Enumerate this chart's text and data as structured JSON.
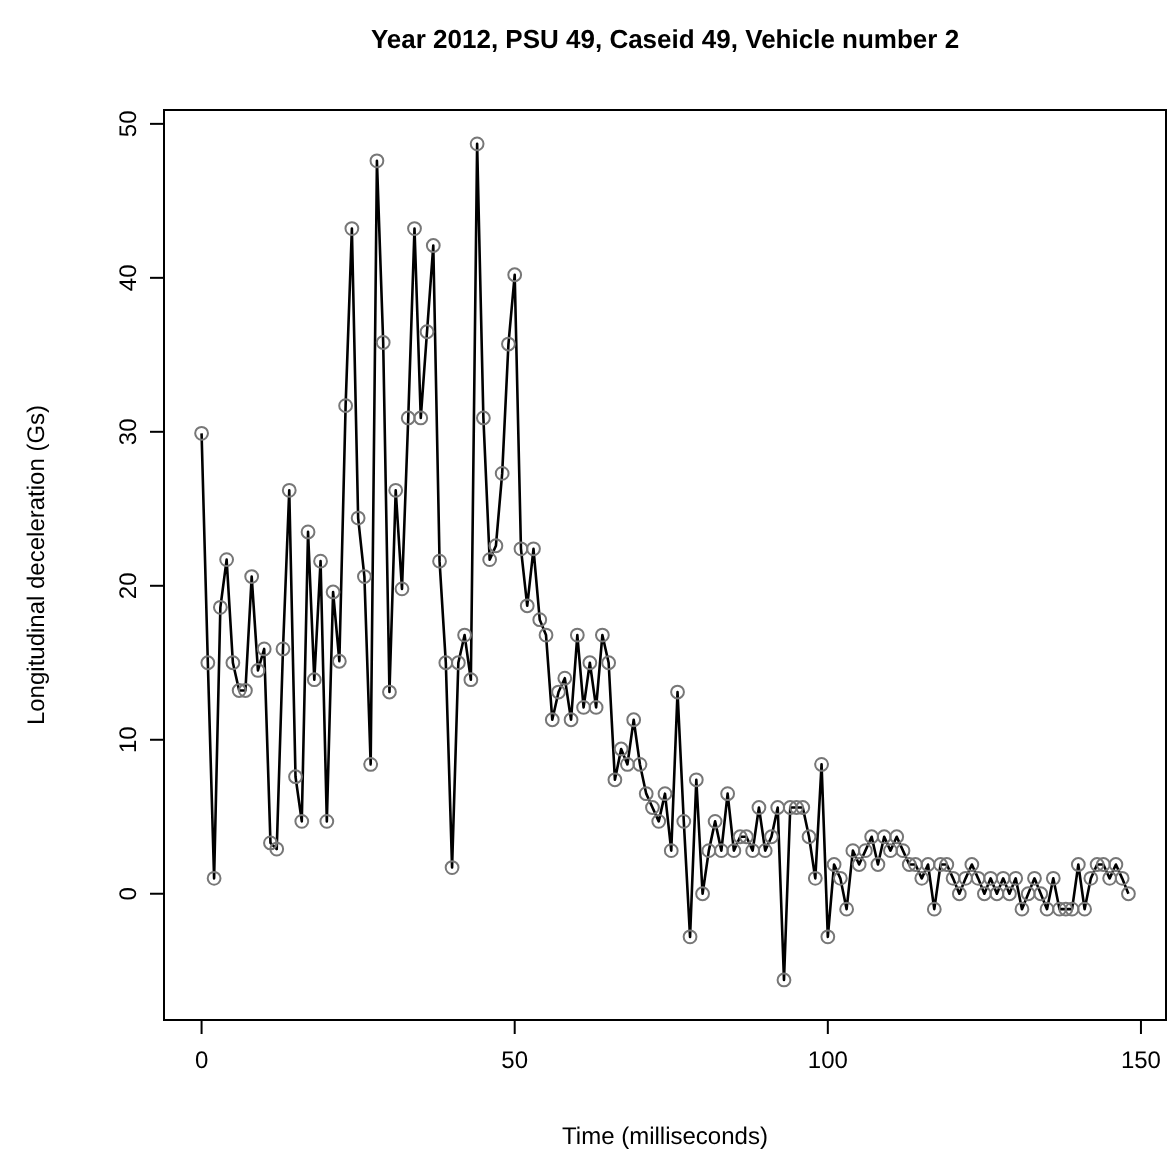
{
  "chart_data": {
    "type": "line",
    "title": "Year 2012, PSU 49, Caseid 49, Vehicle number 2",
    "xlabel": "Time (milliseconds)",
    "ylabel": "Longitudinal deceleration (Gs)",
    "marker": "circle",
    "line_style": "solid",
    "grid": false,
    "xlim": [
      -6,
      154
    ],
    "ylim": [
      -8.2,
      50.9
    ],
    "xticks": [
      0,
      50,
      100,
      150
    ],
    "yticks": [
      0,
      10,
      20,
      30,
      40,
      50
    ],
    "series": [
      {
        "color": "#000000",
        "x": [
          0,
          1,
          2,
          3,
          4,
          5,
          6,
          7,
          8,
          9,
          10,
          11,
          12,
          13,
          14,
          15,
          16,
          17,
          18,
          19,
          20,
          21,
          22,
          23,
          24,
          25,
          26,
          27,
          28,
          29,
          30,
          31,
          32,
          33,
          34,
          35,
          36,
          37,
          38,
          39,
          40,
          41,
          42,
          43,
          44,
          45,
          46,
          47,
          48,
          49,
          50,
          51,
          52,
          53,
          54,
          55,
          56,
          57,
          58,
          59,
          60,
          61,
          62,
          63,
          64,
          65,
          66,
          67,
          68,
          69,
          70,
          71,
          72,
          73,
          74,
          75,
          76,
          77,
          78,
          79,
          80,
          81,
          82,
          83,
          84,
          85,
          86,
          87,
          88,
          89,
          90,
          91,
          92,
          93,
          94,
          95,
          96,
          97,
          98,
          99,
          100,
          101,
          102,
          103,
          104,
          105,
          106,
          107,
          108,
          109,
          110,
          111,
          112,
          113,
          114,
          115,
          116,
          117,
          118,
          119,
          120,
          121,
          122,
          123,
          124,
          125,
          126,
          127,
          128,
          129,
          130,
          131,
          132,
          133,
          134,
          135,
          136,
          137,
          138,
          139,
          140,
          141,
          142,
          143,
          144,
          145,
          146,
          147,
          148
        ],
        "values": [
          29.9,
          15,
          1,
          18.6,
          21.7,
          15,
          13.2,
          13.2,
          20.6,
          14.5,
          15.9,
          3.3,
          2.9,
          15.9,
          26.2,
          7.6,
          4.7,
          23.5,
          13.9,
          21.6,
          4.7,
          19.6,
          15.1,
          31.7,
          43.2,
          24.4,
          20.6,
          8.4,
          47.6,
          35.8,
          13.1,
          26.2,
          19.8,
          30.9,
          43.2,
          30.9,
          36.5,
          42.1,
          21.6,
          15,
          1.7,
          15,
          16.8,
          13.9,
          48.7,
          30.9,
          21.7,
          22.6,
          27.3,
          35.7,
          40.2,
          22.4,
          18.7,
          22.4,
          17.8,
          16.8,
          11.3,
          13.1,
          14,
          11.3,
          16.8,
          12.1,
          15,
          12.1,
          16.8,
          15,
          7.4,
          9.4,
          8.4,
          11.3,
          8.4,
          6.5,
          5.6,
          4.7,
          6.5,
          2.8,
          13.1,
          4.7,
          -2.8,
          7.4,
          0,
          2.8,
          4.7,
          2.8,
          6.5,
          2.8,
          3.7,
          3.7,
          2.8,
          5.6,
          2.8,
          3.7,
          5.6,
          -5.6,
          5.6,
          5.6,
          5.6,
          3.7,
          1,
          8.4,
          -2.8,
          1.9,
          1,
          -1,
          2.8,
          1.9,
          2.8,
          3.7,
          1.9,
          3.7,
          2.8,
          3.7,
          2.8,
          1.9,
          1.9,
          1,
          1.9,
          -1,
          1.9,
          1.9,
          1,
          0,
          1,
          1.9,
          1,
          0,
          1,
          0,
          1,
          0,
          1,
          -1,
          0,
          1,
          0,
          -1,
          1,
          -1,
          -1,
          -1,
          1.9,
          -1,
          1,
          1.9,
          1.9,
          1,
          1.9,
          1,
          0
        ]
      }
    ]
  }
}
